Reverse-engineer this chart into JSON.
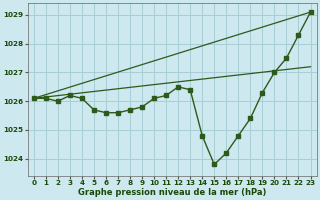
{
  "xlabel": "Graphe pression niveau de la mer (hPa)",
  "bg_color": "#cde8ee",
  "grid_color": "#a8cdd4",
  "line_color": "#2d5a1b",
  "hours": [
    0,
    1,
    2,
    3,
    4,
    5,
    6,
    7,
    8,
    9,
    10,
    11,
    12,
    13,
    14,
    15,
    16,
    17,
    18,
    19,
    20,
    21,
    22,
    23
  ],
  "series_main": [
    1026.1,
    1026.1,
    1026.0,
    1026.2,
    1026.1,
    1025.7,
    1025.6,
    1025.6,
    1025.7,
    1025.8,
    1026.1,
    1026.2,
    1026.5,
    1026.4,
    1024.8,
    1023.8,
    1024.2,
    1024.8,
    1025.4,
    1026.3,
    1027.0,
    1027.5,
    1028.3,
    1029.1
  ],
  "series_trend1_x": [
    0,
    23
  ],
  "series_trend1_y": [
    1026.1,
    1029.1
  ],
  "series_trend2_x": [
    0,
    23
  ],
  "series_trend2_y": [
    1026.1,
    1027.2
  ],
  "ylim": [
    1023.4,
    1029.4
  ],
  "yticks": [
    1024,
    1025,
    1026,
    1027,
    1028,
    1029
  ],
  "xticks": [
    0,
    1,
    2,
    3,
    4,
    5,
    6,
    7,
    8,
    9,
    10,
    11,
    12,
    13,
    14,
    15,
    16,
    17,
    18,
    19,
    20,
    21,
    22,
    23
  ],
  "xlabel_fontsize": 6.0,
  "tick_fontsize": 5.2
}
